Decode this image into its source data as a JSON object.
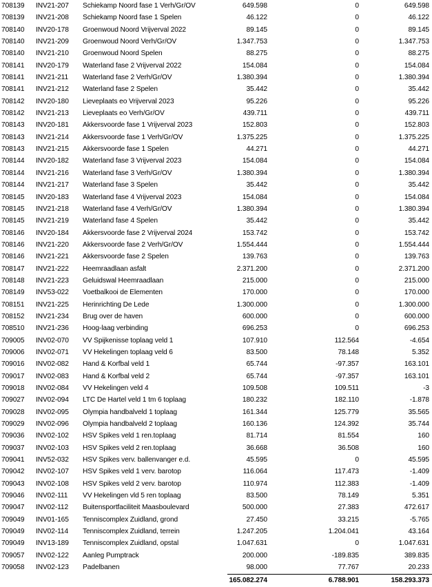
{
  "rows": [
    [
      "708139",
      "INV21-207",
      "Schiekamp Noord fase 1 Verh/Gr/OV",
      "649.598",
      "0",
      "649.598"
    ],
    [
      "708139",
      "INV21-208",
      "Schiekamp Noord fase 1 Spelen",
      "46.122",
      "0",
      "46.122"
    ],
    [
      "708140",
      "INV20-178",
      "Groenwoud Noord Vrijverval 2022",
      "89.145",
      "0",
      "89.145"
    ],
    [
      "708140",
      "INV21-209",
      "Groenwoud Noord Verh/Gr/OV",
      "1.347.753",
      "0",
      "1.347.753"
    ],
    [
      "708140",
      "INV21-210",
      "Groenwoud Noord Spelen",
      "88.275",
      "0",
      "88.275"
    ],
    [
      "708141",
      "INV20-179",
      "Waterland fase 2 Vrijverval 2022",
      "154.084",
      "0",
      "154.084"
    ],
    [
      "708141",
      "INV21-211",
      "Waterland fase 2 Verh/Gr/OV",
      "1.380.394",
      "0",
      "1.380.394"
    ],
    [
      "708141",
      "INV21-212",
      "Waterland fase 2 Spelen",
      "35.442",
      "0",
      "35.442"
    ],
    [
      "708142",
      "INV20-180",
      "Lieveplaats eo Vrijverval 2023",
      "95.226",
      "0",
      "95.226"
    ],
    [
      "708142",
      "INV21-213",
      "Lieveplaats eo Verh/Gr/OV",
      "439.711",
      "0",
      "439.711"
    ],
    [
      "708143",
      "INV20-181",
      "Akkersvoorde fase 1 Vrijverval 2023",
      "152.803",
      "0",
      "152.803"
    ],
    [
      "708143",
      "INV21-214",
      "Akkersvoorde fase 1 Verh/Gr/OV",
      "1.375.225",
      "0",
      "1.375.225"
    ],
    [
      "708143",
      "INV21-215",
      "Akkersvoorde fase 1 Spelen",
      "44.271",
      "0",
      "44.271"
    ],
    [
      "708144",
      "INV20-182",
      "Waterland fase 3 Vrijverval 2023",
      "154.084",
      "0",
      "154.084"
    ],
    [
      "708144",
      "INV21-216",
      "Waterland fase 3 Verh/Gr/OV",
      "1.380.394",
      "0",
      "1.380.394"
    ],
    [
      "708144",
      "INV21-217",
      "Waterland fase 3 Spelen",
      "35.442",
      "0",
      "35.442"
    ],
    [
      "708145",
      "INV20-183",
      "Waterland fase 4 Vrijverval 2023",
      "154.084",
      "0",
      "154.084"
    ],
    [
      "708145",
      "INV21-218",
      "Waterland fase 4 Verh/Gr/OV",
      "1.380.394",
      "0",
      "1.380.394"
    ],
    [
      "708145",
      "INV21-219",
      "Waterland fase 4 Spelen",
      "35.442",
      "0",
      "35.442"
    ],
    [
      "708146",
      "INV20-184",
      "Akkersvoorde fase 2 Vrijverval 2024",
      "153.742",
      "0",
      "153.742"
    ],
    [
      "708146",
      "INV21-220",
      "Akkersvoorde fase 2 Verh/Gr/OV",
      "1.554.444",
      "0",
      "1.554.444"
    ],
    [
      "708146",
      "INV21-221",
      "Akkersvoorde fase 2 Spelen",
      "139.763",
      "0",
      "139.763"
    ],
    [
      "708147",
      "INV21-222",
      "Heemraadlaan asfalt",
      "2.371.200",
      "0",
      "2.371.200"
    ],
    [
      "708148",
      "INV21-223",
      "Geluidswal Heemraadlaan",
      "215.000",
      "0",
      "215.000"
    ],
    [
      "708149",
      "INV53-022",
      "Voetbalkooi de Elementen",
      "170.000",
      "0",
      "170.000"
    ],
    [
      "708151",
      "INV21-225",
      "Herinrichting De Lede",
      "1.300.000",
      "0",
      "1.300.000"
    ],
    [
      "708152",
      "INV21-234",
      "Brug over de haven",
      "600.000",
      "0",
      "600.000"
    ],
    [
      "708510",
      "INV21-236",
      "Hoog-laag verbinding",
      "696.253",
      "0",
      "696.253"
    ],
    [
      "709005",
      "INV02-070",
      "VV Spijkenisse toplaag veld 1",
      "107.910",
      "112.564",
      "-4.654"
    ],
    [
      "709006",
      "INV02-071",
      "VV Hekelingen toplaag veld 6",
      "83.500",
      "78.148",
      "5.352"
    ],
    [
      "709016",
      "INV02-082",
      "Hand & Korfbal veld 1",
      "65.744",
      "-97.357",
      "163.101"
    ],
    [
      "709017",
      "INV02-083",
      "Hand & Korfbal veld 2",
      "65.744",
      "-97.357",
      "163.101"
    ],
    [
      "709018",
      "INV02-084",
      "VV Hekelingen veld 4",
      "109.508",
      "109.511",
      "-3"
    ],
    [
      "709027",
      "INV02-094",
      "LTC De Hartel veld 1 tm 6 toplaag",
      "180.232",
      "182.110",
      "-1.878"
    ],
    [
      "709028",
      "INV02-095",
      "Olympia handbalveld 1 toplaag",
      "161.344",
      "125.779",
      "35.565"
    ],
    [
      "709029",
      "INV02-096",
      "Olympia handbalveld 2 toplaag",
      "160.136",
      "124.392",
      "35.744"
    ],
    [
      "709036",
      "INV02-102",
      "HSV Spikes veld 1 ren.toplaag",
      "81.714",
      "81.554",
      "160"
    ],
    [
      "709037",
      "INV02-103",
      "HSV Spikes veld 2 ren.toplaag",
      "36.668",
      "36.508",
      "160"
    ],
    [
      "709041",
      "INV52-032",
      "HSV Spikes verv. ballenvanger e.d.",
      "45.595",
      "0",
      "45.595"
    ],
    [
      "709042",
      "INV02-107",
      "HSV Spikes veld 1 verv. barotop",
      "116.064",
      "117.473",
      "-1.409"
    ],
    [
      "709043",
      "INV02-108",
      "HSV Spikes veld 2 verv. barotop",
      "110.974",
      "112.383",
      "-1.409"
    ],
    [
      "709046",
      "INV02-111",
      "VV Hekelingen vld 5 ren toplaag",
      "83.500",
      "78.149",
      "5.351"
    ],
    [
      "709047",
      "INV02-112",
      "Buitensportfaciliteit Maasboulevard",
      "500.000",
      "27.383",
      "472.617"
    ],
    [
      "709049",
      "INV01-165",
      "Tenniscomplex Zuidland, grond",
      "27.450",
      "33.215",
      "-5.765"
    ],
    [
      "709049",
      "INV02-114",
      "Tenniscomplex Zuidland, terrein",
      "1.247.205",
      "1.204.041",
      "43.164"
    ],
    [
      "709049",
      "INV13-189",
      "Tenniscomplex Zuidland, opstal",
      "1.047.631",
      "0",
      "1.047.631"
    ],
    [
      "709057",
      "INV02-122",
      "Aanleg Pumptrack",
      "200.000",
      "-189.835",
      "389.835"
    ],
    [
      "709058",
      "INV02-123",
      "Padelbanen",
      "98.000",
      "77.767",
      "20.233"
    ]
  ],
  "totals": [
    "165.082.274",
    "6.788.901",
    "158.293.373"
  ]
}
